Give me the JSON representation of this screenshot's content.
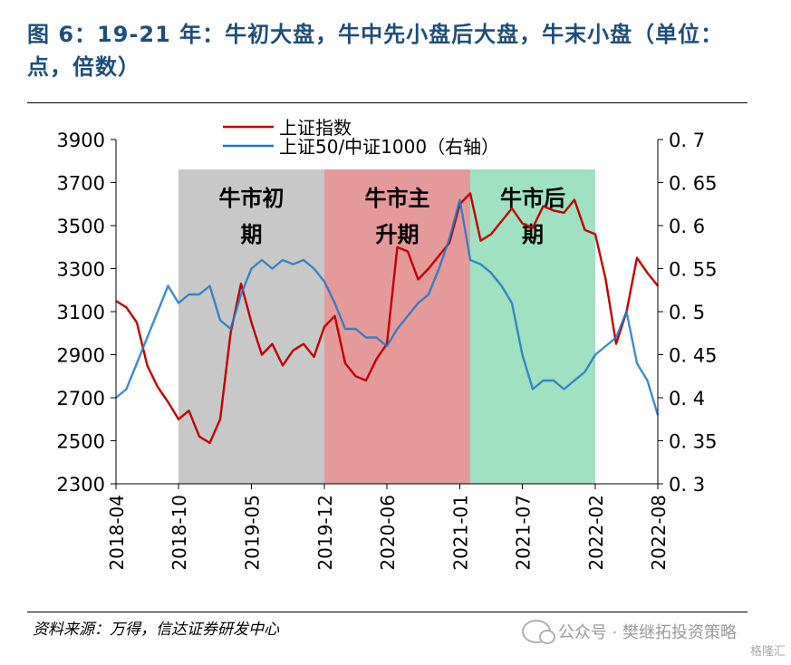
{
  "title": "图 6：19-21 年：牛初大盘，牛中先小盘后大盘，牛末小盘（单位：点，倍数）",
  "source": "资料来源：万得，信达证券研发中心",
  "watermark": {
    "icon": "wechat-icon",
    "text": "公众号 · 樊继拓投资策略"
  },
  "corner_logo": "格隆汇",
  "chart_data": {
    "type": "line",
    "x_dates": [
      "2018-04",
      "2018-10",
      "2019-05",
      "2019-12",
      "2020-06",
      "2021-01",
      "2021-07",
      "2022-02",
      "2022-08"
    ],
    "x_tick_labels": [
      "2018-04",
      "2018-10",
      "2019-05",
      "2019-12",
      "2020-06",
      "2021-01",
      "2021-07",
      "2022-02",
      "2022-08"
    ],
    "y_left": {
      "ticks": [
        2300,
        2500,
        2700,
        2900,
        3100,
        3300,
        3500,
        3700,
        3900
      ],
      "ylim": [
        2300,
        3900
      ]
    },
    "y_right": {
      "ticks": [
        "0. 3",
        "0. 35",
        "0. 4",
        "0. 45",
        "0. 5",
        "0. 55",
        "0. 6",
        "0. 65",
        "0. 7"
      ],
      "ylim": [
        0.3,
        0.7
      ]
    },
    "legend_placement": "top-left",
    "regions": [
      {
        "label_line1": "牛市初",
        "label_line2": "期",
        "start": "2018-10",
        "end": "2019-12",
        "color": "#c8c8c8"
      },
      {
        "label_line1": "牛市主",
        "label_line2": "升期",
        "start": "2019-12",
        "end": "2021-02",
        "color": "#e59a9a"
      },
      {
        "label_line1": "牛市后",
        "label_line2": "期",
        "start": "2021-02",
        "end": "2022-02",
        "color": "#9fe1c0"
      }
    ],
    "series": [
      {
        "name": "上证指数",
        "axis": "left",
        "color": "#c00000",
        "points": [
          [
            "2018-04",
            3150
          ],
          [
            "2018-05",
            3120
          ],
          [
            "2018-06",
            3050
          ],
          [
            "2018-07",
            2850
          ],
          [
            "2018-08",
            2750
          ],
          [
            "2018-09",
            2680
          ],
          [
            "2018-10",
            2600
          ],
          [
            "2018-11",
            2640
          ],
          [
            "2018-12",
            2520
          ],
          [
            "2019-01",
            2490
          ],
          [
            "2019-02",
            2600
          ],
          [
            "2019-03",
            3000
          ],
          [
            "2019-04",
            3230
          ],
          [
            "2019-05",
            3050
          ],
          [
            "2019-06",
            2900
          ],
          [
            "2019-07",
            2950
          ],
          [
            "2019-08",
            2850
          ],
          [
            "2019-09",
            2920
          ],
          [
            "2019-10",
            2950
          ],
          [
            "2019-11",
            2890
          ],
          [
            "2019-12",
            3030
          ],
          [
            "2020-01",
            3080
          ],
          [
            "2020-02",
            2860
          ],
          [
            "2020-03",
            2800
          ],
          [
            "2020-04",
            2780
          ],
          [
            "2020-05",
            2880
          ],
          [
            "2020-06",
            2950
          ],
          [
            "2020-07",
            3400
          ],
          [
            "2020-08",
            3380
          ],
          [
            "2020-09",
            3250
          ],
          [
            "2020-10",
            3300
          ],
          [
            "2020-11",
            3360
          ],
          [
            "2020-12",
            3420
          ],
          [
            "2021-01",
            3600
          ],
          [
            "2021-02",
            3650
          ],
          [
            "2021-03",
            3430
          ],
          [
            "2021-04",
            3460
          ],
          [
            "2021-05",
            3520
          ],
          [
            "2021-06",
            3580
          ],
          [
            "2021-07",
            3510
          ],
          [
            "2021-08",
            3490
          ],
          [
            "2021-09",
            3590
          ],
          [
            "2021-10",
            3570
          ],
          [
            "2021-11",
            3560
          ],
          [
            "2021-12",
            3620
          ],
          [
            "2022-01",
            3480
          ],
          [
            "2022-02",
            3460
          ],
          [
            "2022-03",
            3250
          ],
          [
            "2022-04",
            2950
          ],
          [
            "2022-05",
            3100
          ],
          [
            "2022-06",
            3350
          ],
          [
            "2022-07",
            3280
          ],
          [
            "2022-08",
            3220
          ]
        ]
      },
      {
        "name": "上证50/中证1000（右轴）",
        "axis": "right",
        "color": "#1f77c8",
        "points": [
          [
            "2018-04",
            0.4
          ],
          [
            "2018-05",
            0.41
          ],
          [
            "2018-06",
            0.44
          ],
          [
            "2018-07",
            0.47
          ],
          [
            "2018-08",
            0.5
          ],
          [
            "2018-09",
            0.53
          ],
          [
            "2018-10",
            0.51
          ],
          [
            "2018-11",
            0.52
          ],
          [
            "2018-12",
            0.52
          ],
          [
            "2019-01",
            0.53
          ],
          [
            "2019-02",
            0.49
          ],
          [
            "2019-03",
            0.48
          ],
          [
            "2019-04",
            0.52
          ],
          [
            "2019-05",
            0.55
          ],
          [
            "2019-06",
            0.56
          ],
          [
            "2019-07",
            0.55
          ],
          [
            "2019-08",
            0.56
          ],
          [
            "2019-09",
            0.555
          ],
          [
            "2019-10",
            0.56
          ],
          [
            "2019-11",
            0.55
          ],
          [
            "2019-12",
            0.535
          ],
          [
            "2020-01",
            0.51
          ],
          [
            "2020-02",
            0.48
          ],
          [
            "2020-03",
            0.48
          ],
          [
            "2020-04",
            0.47
          ],
          [
            "2020-05",
            0.47
          ],
          [
            "2020-06",
            0.46
          ],
          [
            "2020-07",
            0.48
          ],
          [
            "2020-08",
            0.495
          ],
          [
            "2020-09",
            0.51
          ],
          [
            "2020-10",
            0.52
          ],
          [
            "2020-11",
            0.55
          ],
          [
            "2020-12",
            0.585
          ],
          [
            "2021-01",
            0.63
          ],
          [
            "2021-02",
            0.56
          ],
          [
            "2021-03",
            0.555
          ],
          [
            "2021-04",
            0.545
          ],
          [
            "2021-05",
            0.53
          ],
          [
            "2021-06",
            0.51
          ],
          [
            "2021-07",
            0.45
          ],
          [
            "2021-08",
            0.41
          ],
          [
            "2021-09",
            0.42
          ],
          [
            "2021-10",
            0.42
          ],
          [
            "2021-11",
            0.41
          ],
          [
            "2021-12",
            0.42
          ],
          [
            "2022-01",
            0.43
          ],
          [
            "2022-02",
            0.45
          ],
          [
            "2022-03",
            0.46
          ],
          [
            "2022-04",
            0.47
          ],
          [
            "2022-05",
            0.5
          ],
          [
            "2022-06",
            0.44
          ],
          [
            "2022-07",
            0.42
          ],
          [
            "2022-08",
            0.38
          ]
        ]
      }
    ]
  }
}
